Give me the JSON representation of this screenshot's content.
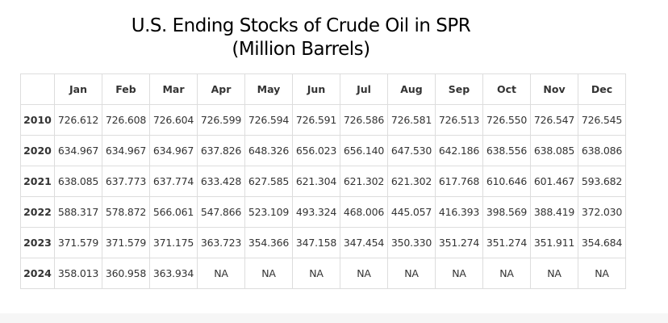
{
  "title": {
    "line1": "U.S. Ending Stocks of Crude Oil in SPR",
    "line2": "(Million Barrels)"
  },
  "table": {
    "corner": "",
    "months": [
      "Jan",
      "Feb",
      "Mar",
      "Apr",
      "May",
      "Jun",
      "Jul",
      "Aug",
      "Sep",
      "Oct",
      "Nov",
      "Dec"
    ],
    "rows": [
      {
        "year": "2010",
        "values": [
          "726.612",
          "726.608",
          "726.604",
          "726.599",
          "726.594",
          "726.591",
          "726.586",
          "726.581",
          "726.513",
          "726.550",
          "726.547",
          "726.545"
        ]
      },
      {
        "year": "2020",
        "values": [
          "634.967",
          "634.967",
          "634.967",
          "637.826",
          "648.326",
          "656.023",
          "656.140",
          "647.530",
          "642.186",
          "638.556",
          "638.085",
          "638.086"
        ]
      },
      {
        "year": "2021",
        "values": [
          "638.085",
          "637.773",
          "637.774",
          "633.428",
          "627.585",
          "621.304",
          "621.302",
          "621.302",
          "617.768",
          "610.646",
          "601.467",
          "593.682"
        ]
      },
      {
        "year": "2022",
        "values": [
          "588.317",
          "578.872",
          "566.061",
          "547.866",
          "523.109",
          "493.324",
          "468.006",
          "445.057",
          "416.393",
          "398.569",
          "388.419",
          "372.030"
        ]
      },
      {
        "year": "2023",
        "values": [
          "371.579",
          "371.579",
          "371.175",
          "363.723",
          "354.366",
          "347.158",
          "347.454",
          "350.330",
          "351.274",
          "351.274",
          "351.911",
          "354.684"
        ]
      },
      {
        "year": "2024",
        "values": [
          "358.013",
          "360.958",
          "363.934",
          "NA",
          "NA",
          "NA",
          "NA",
          "NA",
          "NA",
          "NA",
          "NA",
          "NA"
        ]
      }
    ]
  }
}
